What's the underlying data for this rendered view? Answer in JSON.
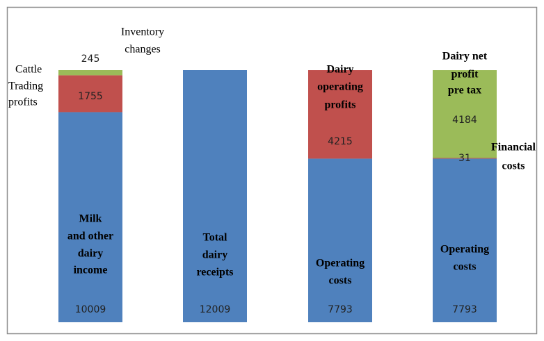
{
  "chart_data": {
    "type": "stacked-bar",
    "bars": [
      {
        "segments": [
          {
            "label": [
              "Milk",
              "and other",
              "dairy",
              "income"
            ],
            "value": 10009,
            "color": "#4f81bd"
          },
          {
            "label": [
              "Cattle",
              "Trading",
              "profits"
            ],
            "value": 1755,
            "color": "#c0504d"
          },
          {
            "label": [
              "Inventory",
              "changes"
            ],
            "value": 245,
            "color": "#9bbb59"
          }
        ]
      },
      {
        "segments": [
          {
            "label": [
              "Total",
              "dairy",
              "receipts"
            ],
            "value": 12009,
            "color": "#4f81bd"
          }
        ]
      },
      {
        "segments": [
          {
            "label": [
              "Operating",
              "costs"
            ],
            "value": 7793,
            "color": "#4f81bd"
          },
          {
            "label": [
              "Dairy",
              "operating",
              "profits"
            ],
            "value": 4215,
            "color": "#c0504d"
          }
        ]
      },
      {
        "segments": [
          {
            "label": [
              "Operating",
              "costs"
            ],
            "value": 7793,
            "color": "#4f81bd"
          },
          {
            "label": [
              "Financial",
              "costs"
            ],
            "value": 31,
            "color": "#c0504d"
          },
          {
            "label": [
              "Dairy net",
              "profit",
              "pre tax"
            ],
            "value": 4184,
            "color": "#9bbb59"
          }
        ]
      }
    ]
  }
}
